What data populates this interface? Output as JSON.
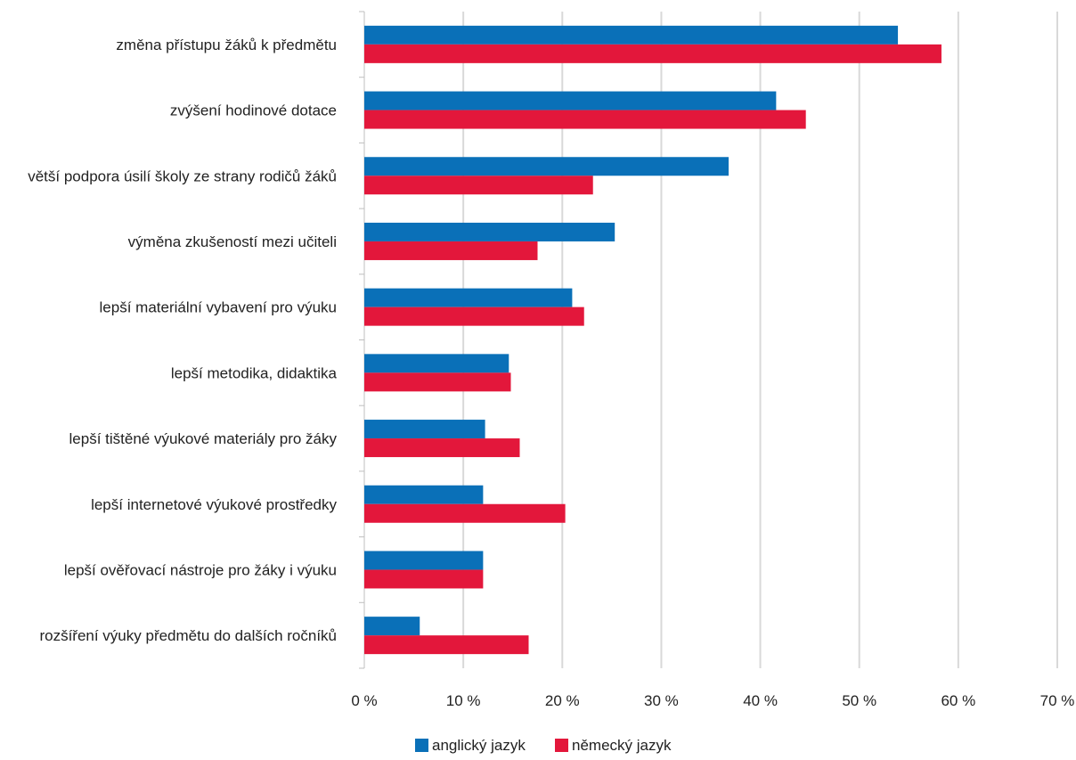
{
  "chart_data": {
    "type": "bar",
    "orientation": "horizontal",
    "categories": [
      "změna přístupu žáků k předmětu",
      "zvýšení hodinové dotace",
      "větší podpora úsilí školy ze strany rodičů žáků",
      "výměna zkušeností mezi učiteli",
      "lepší materiální vybavení pro výuku",
      "lepší metodika, didaktika",
      "lepší tištěné výukové materiály pro žáky",
      "lepší internetové výukové prostředky",
      "lepší ověřovací nástroje pro žáky i výuku",
      "rozšíření výuky předmětu do dalších ročníků"
    ],
    "series": [
      {
        "name": "anglický jazyk",
        "color": "#0a70b8",
        "values": [
          53.9,
          41.6,
          36.8,
          25.3,
          21.0,
          14.6,
          12.2,
          12.0,
          12.0,
          5.6
        ]
      },
      {
        "name": "německý jazyk",
        "color": "#e3173b",
        "values": [
          58.3,
          44.6,
          23.1,
          17.5,
          22.2,
          14.8,
          15.7,
          20.3,
          12.0,
          16.6
        ]
      }
    ],
    "xlim": [
      0,
      70
    ],
    "xticks": [
      0,
      10,
      20,
      30,
      40,
      50,
      60,
      70
    ],
    "tick_labels": [
      "0 %",
      "10 %",
      "20 %",
      "30 %",
      "40 %",
      "50 %",
      "60 %",
      "70 %"
    ],
    "grid": true,
    "legend_position": "bottom"
  }
}
